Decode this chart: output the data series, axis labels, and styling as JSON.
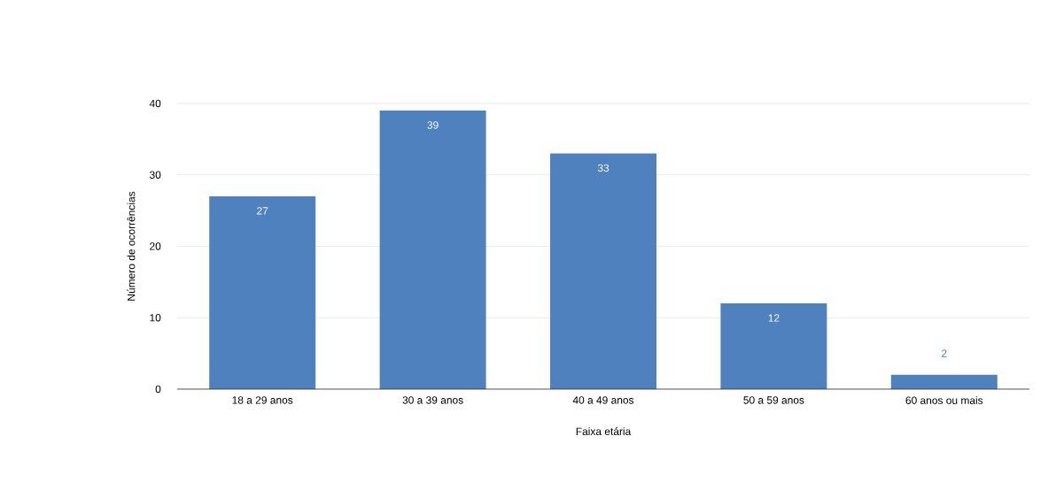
{
  "chart_data": {
    "type": "bar",
    "xlabel": "Faixa etária",
    "ylabel": "Número de ocorrências",
    "categories": [
      "18 a 29 anos",
      "30 a 39 anos",
      "40 a 49 anos",
      "50 a 59 anos",
      "60 anos ou mais"
    ],
    "values": [
      27,
      39,
      33,
      12,
      2
    ],
    "color": "#4e81bd",
    "ylim": [
      0,
      40
    ],
    "yticks": [
      0,
      10,
      20,
      30,
      40
    ],
    "grid": "y",
    "data_labels": true
  }
}
